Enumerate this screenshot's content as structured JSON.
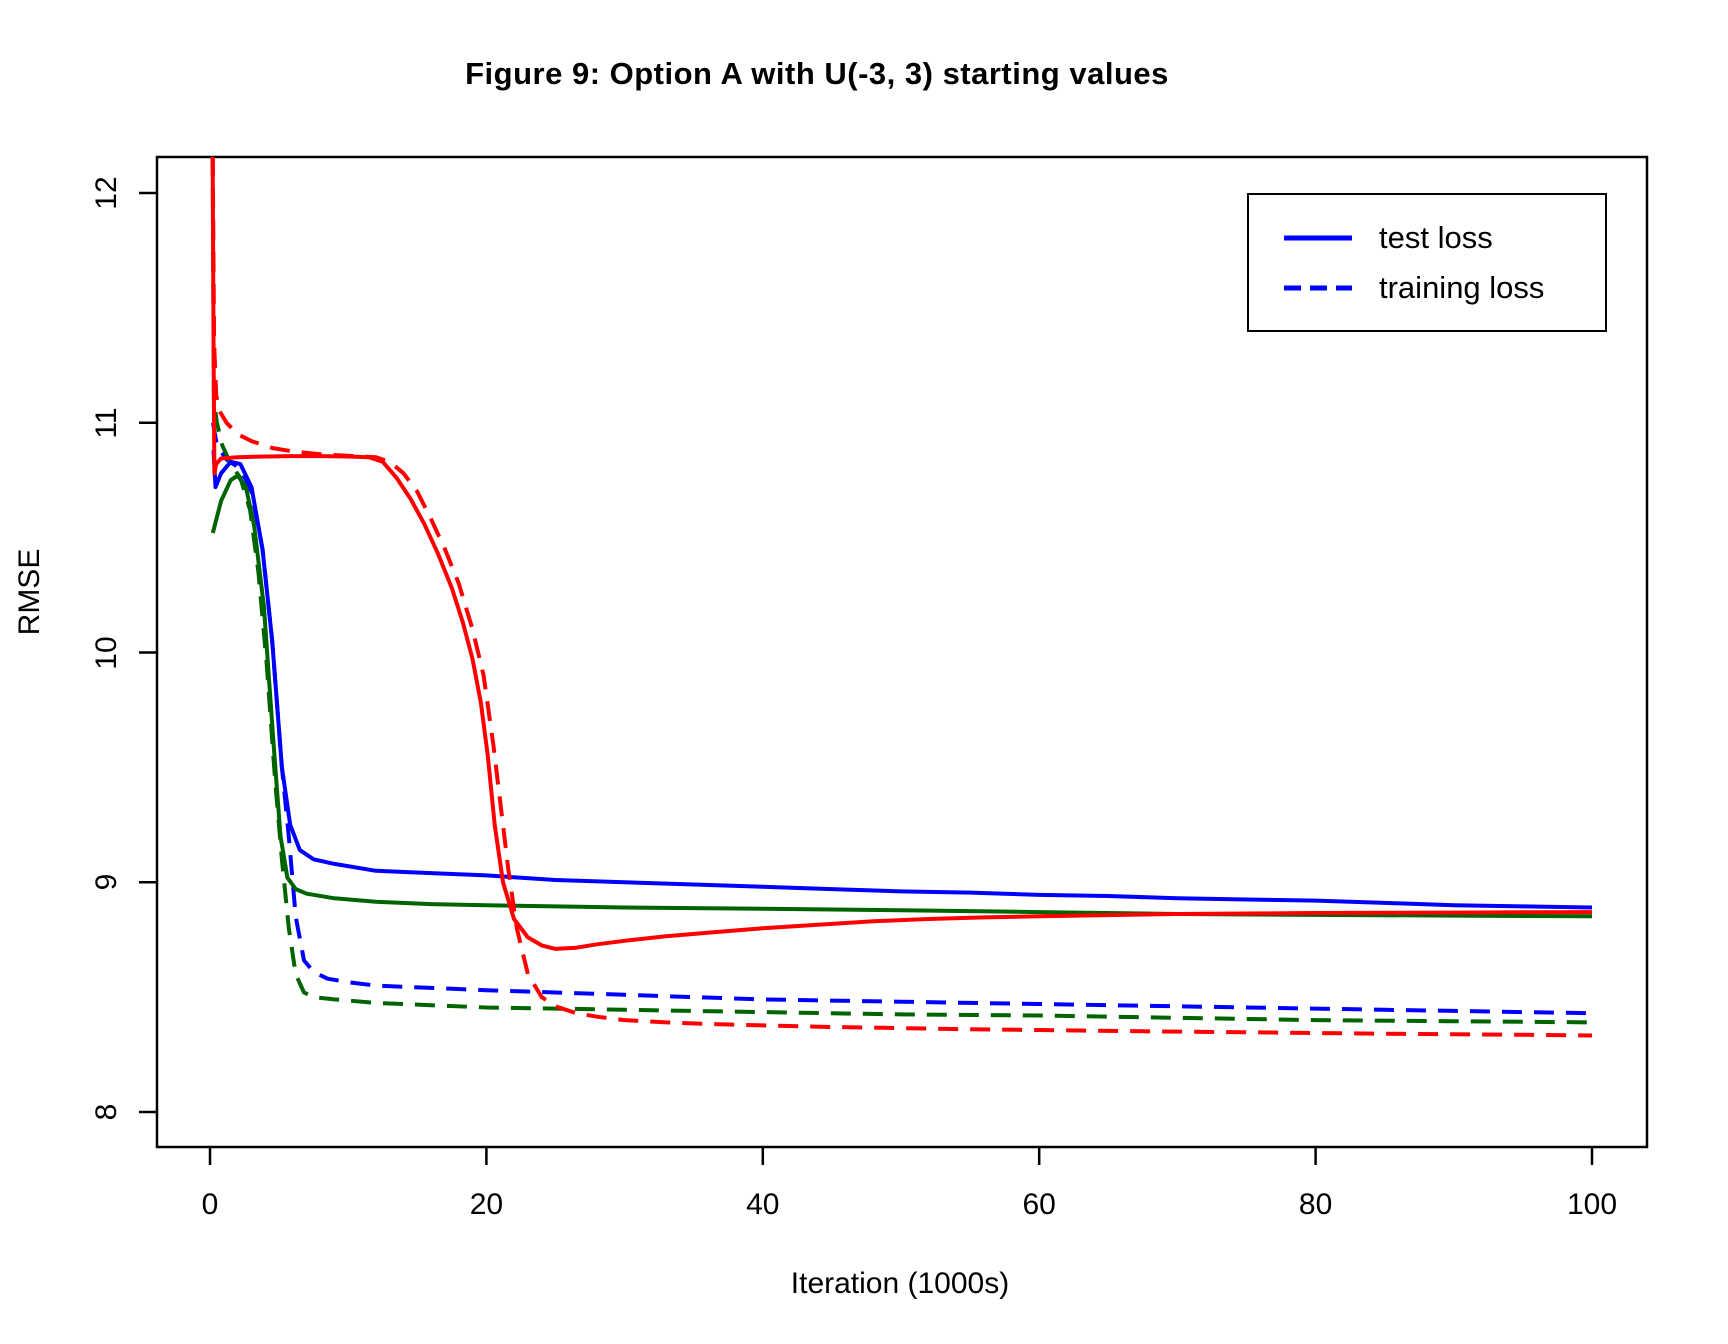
{
  "figure": {
    "title": "Figure 9: Option A with U(-3, 3) starting values",
    "x_axis_label": "Iteration (1000s)",
    "y_axis_label": "RMSE"
  },
  "legend": {
    "items": [
      {
        "label": "test loss",
        "style": "solid",
        "color": "#0000FF"
      },
      {
        "label": "training loss",
        "style": "dashed",
        "color": "#0000FF"
      }
    ]
  },
  "chart_data": {
    "type": "line",
    "title": "Figure 9: Option A with U(-3, 3) starting values",
    "xlabel": "Iteration (1000s)",
    "ylabel": "RMSE",
    "xlim": [
      -3.8,
      104
    ],
    "ylim": [
      7.85,
      12.16
    ],
    "x_ticks": [
      0,
      20,
      40,
      60,
      80,
      100
    ],
    "y_ticks": [
      8,
      9,
      10,
      11,
      12
    ],
    "grid": false,
    "legend_position": "top-right",
    "colors": {
      "blue": "#0000FF",
      "red": "#FF0000",
      "green": "#006400"
    },
    "series": [
      {
        "name": "blue training loss",
        "id": "blue-training",
        "color": "#0000FF",
        "dash": "dashed",
        "points": [
          [
            0.22,
            11.0
          ],
          [
            0.5,
            10.9
          ],
          [
            1.2,
            10.84
          ],
          [
            2.2,
            10.8
          ],
          [
            3.0,
            10.7
          ],
          [
            3.8,
            10.45
          ],
          [
            4.5,
            10.05
          ],
          [
            5.2,
            9.5
          ],
          [
            5.7,
            9.2
          ],
          [
            6.2,
            8.85
          ],
          [
            6.8,
            8.66
          ],
          [
            7.5,
            8.61
          ],
          [
            8.5,
            8.58
          ],
          [
            10,
            8.565
          ],
          [
            12,
            8.55
          ],
          [
            16,
            8.54
          ],
          [
            20,
            8.53
          ],
          [
            25,
            8.52
          ],
          [
            30,
            8.51
          ],
          [
            35,
            8.5
          ],
          [
            40,
            8.49
          ],
          [
            45,
            8.485
          ],
          [
            50,
            8.48
          ],
          [
            55,
            8.475
          ],
          [
            60,
            8.47
          ],
          [
            65,
            8.465
          ],
          [
            70,
            8.46
          ],
          [
            75,
            8.455
          ],
          [
            80,
            8.45
          ],
          [
            85,
            8.445
          ],
          [
            90,
            8.44
          ],
          [
            95,
            8.435
          ],
          [
            100,
            8.43
          ]
        ]
      },
      {
        "name": "green training loss",
        "id": "green-training",
        "color": "#006400",
        "dash": "dashed",
        "points": [
          [
            0.18,
            12.3
          ],
          [
            0.28,
            11.1
          ],
          [
            0.5,
            11.0
          ],
          [
            0.9,
            10.9
          ],
          [
            1.5,
            10.82
          ],
          [
            2.2,
            10.76
          ],
          [
            2.9,
            10.62
          ],
          [
            3.5,
            10.35
          ],
          [
            4.1,
            9.95
          ],
          [
            4.7,
            9.45
          ],
          [
            5.2,
            9.1
          ],
          [
            5.7,
            8.8
          ],
          [
            6.2,
            8.6
          ],
          [
            6.8,
            8.52
          ],
          [
            7.5,
            8.5
          ],
          [
            9,
            8.49
          ],
          [
            12,
            8.475
          ],
          [
            16,
            8.465
          ],
          [
            20,
            8.455
          ],
          [
            25,
            8.45
          ],
          [
            30,
            8.445
          ],
          [
            40,
            8.435
          ],
          [
            50,
            8.425
          ],
          [
            60,
            8.42
          ],
          [
            70,
            8.41
          ],
          [
            80,
            8.4
          ],
          [
            90,
            8.395
          ],
          [
            100,
            8.39
          ]
        ]
      },
      {
        "name": "blue test loss",
        "id": "blue-test",
        "color": "#0000FF",
        "dash": "solid",
        "points": [
          [
            0.25,
            10.88
          ],
          [
            0.4,
            10.72
          ],
          [
            0.8,
            10.78
          ],
          [
            1.5,
            10.83
          ],
          [
            2.2,
            10.82
          ],
          [
            3.0,
            10.72
          ],
          [
            3.8,
            10.45
          ],
          [
            4.5,
            10.05
          ],
          [
            5.2,
            9.5
          ],
          [
            5.8,
            9.25
          ],
          [
            6.5,
            9.14
          ],
          [
            7.5,
            9.1
          ],
          [
            9,
            9.08
          ],
          [
            12,
            9.05
          ],
          [
            16,
            9.04
          ],
          [
            20,
            9.03
          ],
          [
            25,
            9.01
          ],
          [
            30,
            9.0
          ],
          [
            35,
            8.99
          ],
          [
            40,
            8.98
          ],
          [
            45,
            8.97
          ],
          [
            50,
            8.96
          ],
          [
            55,
            8.955
          ],
          [
            60,
            8.945
          ],
          [
            65,
            8.94
          ],
          [
            70,
            8.93
          ],
          [
            75,
            8.925
          ],
          [
            80,
            8.92
          ],
          [
            85,
            8.91
          ],
          [
            90,
            8.9
          ],
          [
            95,
            8.895
          ],
          [
            100,
            8.89
          ]
        ]
      },
      {
        "name": "green test loss",
        "id": "green-test",
        "color": "#006400",
        "dash": "solid",
        "points": [
          [
            0.2,
            10.52
          ],
          [
            0.8,
            10.66
          ],
          [
            1.5,
            10.75
          ],
          [
            2.0,
            10.77
          ],
          [
            2.6,
            10.72
          ],
          [
            3.2,
            10.55
          ],
          [
            3.9,
            10.2
          ],
          [
            4.6,
            9.6
          ],
          [
            5.1,
            9.2
          ],
          [
            5.6,
            9.02
          ],
          [
            6.2,
            8.97
          ],
          [
            7,
            8.95
          ],
          [
            9,
            8.93
          ],
          [
            12,
            8.915
          ],
          [
            16,
            8.905
          ],
          [
            20,
            8.9
          ],
          [
            25,
            8.895
          ],
          [
            30,
            8.89
          ],
          [
            40,
            8.885
          ],
          [
            50,
            8.878
          ],
          [
            60,
            8.87
          ],
          [
            70,
            8.862
          ],
          [
            80,
            8.858
          ],
          [
            90,
            8.855
          ],
          [
            100,
            8.852
          ]
        ]
      },
      {
        "name": "red training loss",
        "id": "red-training",
        "color": "#FF0000",
        "dash": "dashed",
        "points": [
          [
            0.18,
            12.3
          ],
          [
            0.3,
            11.35
          ],
          [
            0.45,
            11.12
          ],
          [
            0.7,
            11.05
          ],
          [
            1.2,
            11.0
          ],
          [
            2,
            10.95
          ],
          [
            3,
            10.92
          ],
          [
            4.5,
            10.89
          ],
          [
            6,
            10.875
          ],
          [
            8,
            10.863
          ],
          [
            10,
            10.856
          ],
          [
            12,
            10.85
          ],
          [
            13,
            10.83
          ],
          [
            14,
            10.78
          ],
          [
            15,
            10.7
          ],
          [
            16,
            10.58
          ],
          [
            17,
            10.45
          ],
          [
            18,
            10.3
          ],
          [
            19,
            10.1
          ],
          [
            19.8,
            9.9
          ],
          [
            20.5,
            9.6
          ],
          [
            21,
            9.35
          ],
          [
            21.6,
            9.05
          ],
          [
            22.2,
            8.8
          ],
          [
            23,
            8.6
          ],
          [
            24,
            8.5
          ],
          [
            25,
            8.46
          ],
          [
            26.5,
            8.43
          ],
          [
            28,
            8.415
          ],
          [
            30,
            8.4
          ],
          [
            33,
            8.39
          ],
          [
            36,
            8.383
          ],
          [
            40,
            8.377
          ],
          [
            45,
            8.37
          ],
          [
            50,
            8.365
          ],
          [
            55,
            8.36
          ],
          [
            60,
            8.357
          ],
          [
            65,
            8.353
          ],
          [
            70,
            8.35
          ],
          [
            75,
            8.347
          ],
          [
            80,
            8.344
          ],
          [
            85,
            8.341
          ],
          [
            90,
            8.338
          ],
          [
            95,
            8.336
          ],
          [
            100,
            8.333
          ]
        ]
      },
      {
        "name": "red test loss",
        "id": "red-test",
        "color": "#FF0000",
        "dash": "solid",
        "points": [
          [
            0.18,
            12.3
          ],
          [
            0.26,
            11.3
          ],
          [
            0.32,
            10.78
          ],
          [
            0.45,
            10.82
          ],
          [
            0.8,
            10.845
          ],
          [
            2,
            10.85
          ],
          [
            4,
            10.853
          ],
          [
            6,
            10.855
          ],
          [
            8,
            10.855
          ],
          [
            10,
            10.853
          ],
          [
            11.5,
            10.85
          ],
          [
            12.5,
            10.83
          ],
          [
            13.5,
            10.76
          ],
          [
            14.5,
            10.67
          ],
          [
            15.5,
            10.56
          ],
          [
            16.5,
            10.43
          ],
          [
            17.5,
            10.28
          ],
          [
            18.3,
            10.13
          ],
          [
            19,
            9.97
          ],
          [
            19.6,
            9.78
          ],
          [
            20.1,
            9.55
          ],
          [
            20.6,
            9.25
          ],
          [
            21.2,
            9.0
          ],
          [
            22,
            8.84
          ],
          [
            23,
            8.76
          ],
          [
            24,
            8.725
          ],
          [
            25,
            8.71
          ],
          [
            26.5,
            8.715
          ],
          [
            28,
            8.73
          ],
          [
            30,
            8.745
          ],
          [
            33,
            8.765
          ],
          [
            36,
            8.78
          ],
          [
            40,
            8.8
          ],
          [
            44,
            8.815
          ],
          [
            48,
            8.83
          ],
          [
            52,
            8.84
          ],
          [
            56,
            8.847
          ],
          [
            60,
            8.852
          ],
          [
            65,
            8.857
          ],
          [
            70,
            8.862
          ],
          [
            75,
            8.864
          ],
          [
            80,
            8.866
          ],
          [
            85,
            8.867
          ],
          [
            90,
            8.868
          ],
          [
            95,
            8.869
          ],
          [
            100,
            8.87
          ]
        ]
      }
    ]
  }
}
